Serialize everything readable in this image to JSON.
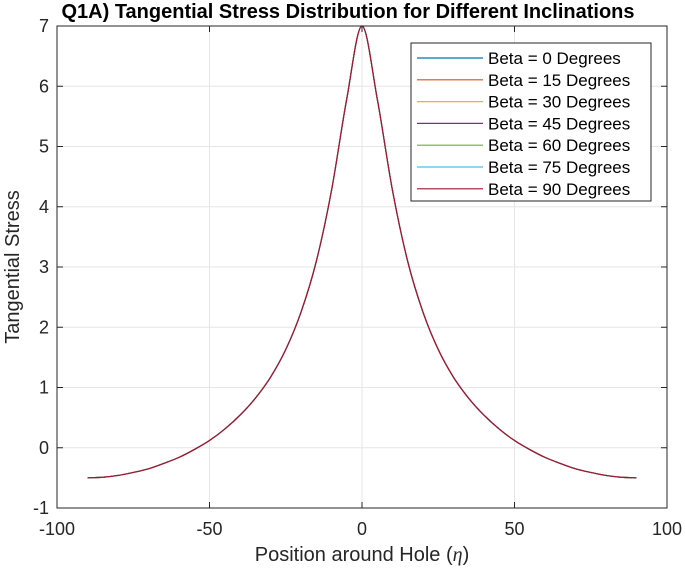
{
  "chart_data": {
    "type": "line",
    "title": "Q1A) Tangential Stress Distribution for Different Inclinations",
    "xlabel_text": "Position around Hole (",
    "xlabel_symbol": "η",
    "xlabel_close": ")",
    "ylabel": "Tangential Stress",
    "xlim": [
      -100,
      100
    ],
    "ylim": [
      -1,
      7
    ],
    "xticks": [
      -100,
      -50,
      0,
      50,
      100
    ],
    "yticks": [
      -1,
      0,
      1,
      2,
      3,
      4,
      5,
      6,
      7
    ],
    "xtick_labels": [
      "-100",
      "-50",
      "0",
      "50",
      "100"
    ],
    "ytick_labels": [
      "-1",
      "0",
      "1",
      "2",
      "3",
      "4",
      "5",
      "6",
      "7"
    ],
    "grid": true,
    "legend_position": "top-right",
    "x": [
      -90,
      -85,
      -80,
      -75,
      -70,
      -65,
      -60,
      -55,
      -50,
      -45,
      -40,
      -35,
      -30,
      -25,
      -20,
      -15,
      -10,
      -5,
      0,
      5,
      10,
      15,
      20,
      25,
      30,
      35,
      40,
      45,
      50,
      55,
      60,
      65,
      70,
      75,
      80,
      85,
      90
    ],
    "curve_values": [
      -0.5,
      -0.49,
      -0.46,
      -0.41,
      -0.35,
      -0.26,
      -0.16,
      -0.03,
      0.12,
      0.31,
      0.54,
      0.82,
      1.17,
      1.63,
      2.25,
      3.09,
      4.27,
      5.79,
      7.0,
      5.79,
      4.27,
      3.09,
      2.25,
      1.63,
      1.17,
      0.82,
      0.54,
      0.31,
      0.12,
      -0.03,
      -0.16,
      -0.26,
      -0.35,
      -0.41,
      -0.46,
      -0.49,
      -0.5
    ],
    "series": [
      {
        "name": "Beta = 0 Degrees",
        "color": "#0072BD"
      },
      {
        "name": "Beta = 15 Degrees",
        "color": "#D95319"
      },
      {
        "name": "Beta = 30 Degrees",
        "color": "#EDB120"
      },
      {
        "name": "Beta = 45 Degrees",
        "color": "#7E2F8E"
      },
      {
        "name": "Beta = 60 Degrees",
        "color": "#77AC30"
      },
      {
        "name": "Beta = 75 Degrees",
        "color": "#4DBEEE"
      },
      {
        "name": "Beta = 90 Degrees",
        "color": "#A2142F"
      }
    ]
  }
}
